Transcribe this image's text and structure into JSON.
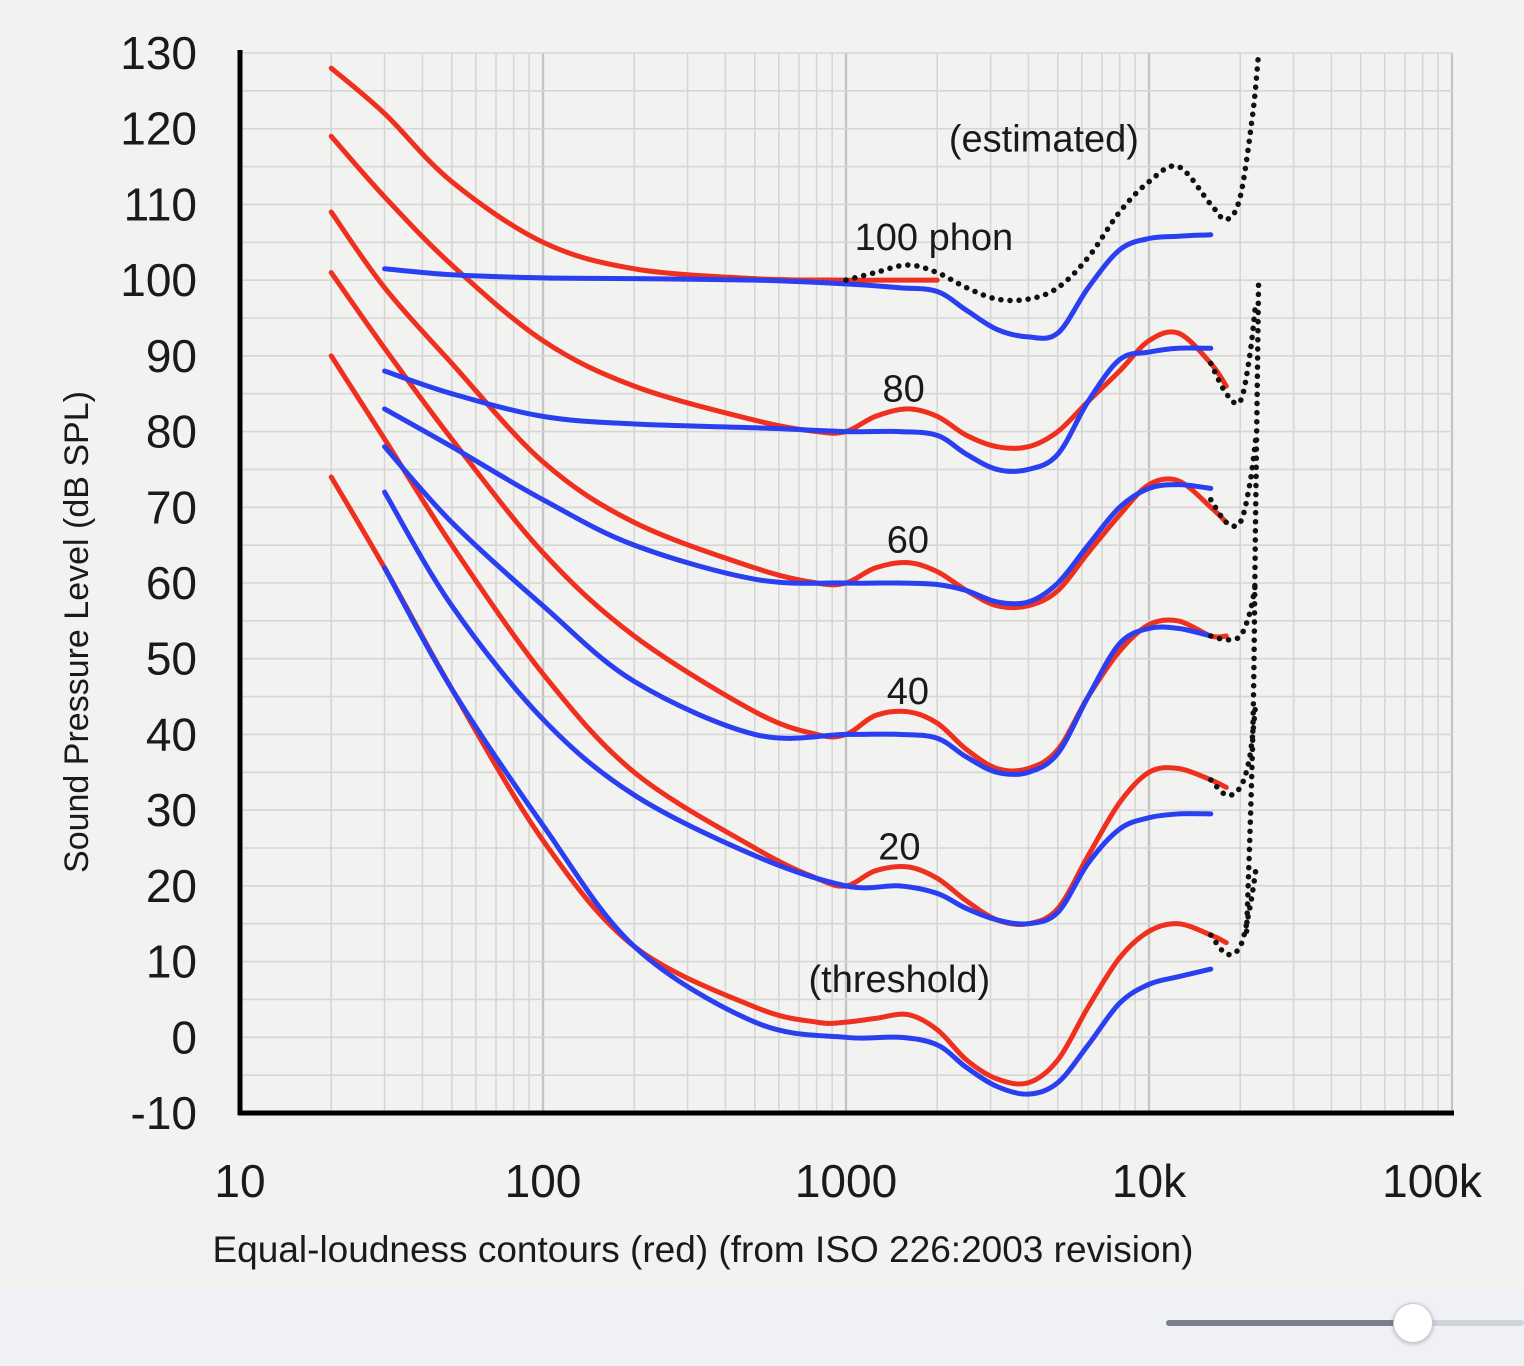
{
  "chart_data": {
    "type": "line",
    "ylabel": "Sound Pressure Level (dB SPL)",
    "xlabel": "Equal-loudness contours (red) (from ISO 226:2003 revision)",
    "x_scale": "log",
    "xlim": [
      10,
      100000
    ],
    "ylim": [
      -10,
      130
    ],
    "grid": true,
    "x_ticks": [
      {
        "value": 10,
        "label": "10"
      },
      {
        "value": 100,
        "label": "100"
      },
      {
        "value": 1000,
        "label": "1000"
      },
      {
        "value": 10000,
        "label": "10k"
      },
      {
        "value": 100000,
        "label": "100k"
      }
    ],
    "y_ticks": [
      {
        "value": 130,
        "label": "130"
      },
      {
        "value": 120,
        "label": "120"
      },
      {
        "value": 110,
        "label": "110"
      },
      {
        "value": 100,
        "label": "100"
      },
      {
        "value": 90,
        "label": "90"
      },
      {
        "value": 80,
        "label": "80"
      },
      {
        "value": 70,
        "label": "70"
      },
      {
        "value": 60,
        "label": "60"
      },
      {
        "value": 50,
        "label": "50"
      },
      {
        "value": 40,
        "label": "40"
      },
      {
        "value": 30,
        "label": "30"
      },
      {
        "value": 20,
        "label": "20"
      },
      {
        "value": 10,
        "label": "10"
      },
      {
        "value": 0,
        "label": "0"
      },
      {
        "value": -10,
        "label": "-10"
      }
    ],
    "colors": {
      "red": "#f0301e",
      "blue": "#2a3ff0",
      "dotted": "#111111",
      "axis": "#000000",
      "grid": "#d0d0d0"
    },
    "annotations": [
      {
        "text": "(estimated)",
        "x": 4500,
        "y": 117
      },
      {
        "text": "100 phon",
        "x": 1950,
        "y": 104
      },
      {
        "text": "80",
        "x": 1550,
        "y": 84
      },
      {
        "text": "60",
        "x": 1600,
        "y": 64
      },
      {
        "text": "40",
        "x": 1600,
        "y": 44
      },
      {
        "text": "20",
        "x": 1500,
        "y": 23.5
      },
      {
        "text": "(threshold)",
        "x": 1500,
        "y": 6
      }
    ],
    "series": [
      {
        "color": "red",
        "style": "solid",
        "points": [
          [
            20,
            128
          ],
          [
            30,
            122
          ],
          [
            50,
            113
          ],
          [
            100,
            105
          ],
          [
            200,
            101.5
          ],
          [
            500,
            100.2
          ],
          [
            1000,
            100
          ],
          [
            1500,
            100
          ],
          [
            2000,
            100
          ]
        ]
      },
      {
        "color": "red",
        "style": "solid",
        "points": [
          [
            20,
            119
          ],
          [
            30,
            111
          ],
          [
            50,
            102
          ],
          [
            100,
            92
          ],
          [
            200,
            86
          ],
          [
            500,
            81.5
          ],
          [
            800,
            80
          ],
          [
            1000,
            80
          ],
          [
            1250,
            82
          ],
          [
            1600,
            83
          ],
          [
            2000,
            82
          ],
          [
            2500,
            79.5
          ],
          [
            3150,
            78
          ],
          [
            4000,
            78
          ],
          [
            5000,
            80
          ],
          [
            6300,
            84
          ],
          [
            8000,
            88
          ],
          [
            10000,
            92
          ],
          [
            12500,
            93
          ],
          [
            16000,
            89
          ],
          [
            18000,
            86
          ]
        ]
      },
      {
        "color": "red",
        "style": "solid",
        "points": [
          [
            20,
            109
          ],
          [
            30,
            99
          ],
          [
            50,
            89
          ],
          [
            100,
            76
          ],
          [
            200,
            68
          ],
          [
            500,
            62
          ],
          [
            800,
            60
          ],
          [
            1000,
            60
          ],
          [
            1250,
            62
          ],
          [
            1600,
            62.7
          ],
          [
            2000,
            61.5
          ],
          [
            2500,
            59
          ],
          [
            3150,
            57
          ],
          [
            4000,
            57
          ],
          [
            5000,
            59
          ],
          [
            6300,
            64
          ],
          [
            8000,
            69
          ],
          [
            10000,
            73
          ],
          [
            12500,
            73.5
          ],
          [
            16000,
            70
          ],
          [
            18000,
            68
          ]
        ]
      },
      {
        "color": "red",
        "style": "solid",
        "points": [
          [
            20,
            101
          ],
          [
            30,
            91
          ],
          [
            50,
            79
          ],
          [
            100,
            64
          ],
          [
            200,
            53
          ],
          [
            500,
            43
          ],
          [
            800,
            40
          ],
          [
            1000,
            40
          ],
          [
            1250,
            42.5
          ],
          [
            1600,
            43
          ],
          [
            2000,
            41.5
          ],
          [
            2500,
            38
          ],
          [
            3150,
            35.5
          ],
          [
            4000,
            35.5
          ],
          [
            5000,
            38
          ],
          [
            6300,
            45
          ],
          [
            8000,
            51
          ],
          [
            10000,
            54.5
          ],
          [
            12500,
            55
          ],
          [
            16000,
            53
          ],
          [
            18000,
            53
          ]
        ]
      },
      {
        "color": "red",
        "style": "solid",
        "points": [
          [
            20,
            90
          ],
          [
            30,
            79
          ],
          [
            50,
            65
          ],
          [
            100,
            48
          ],
          [
            200,
            35
          ],
          [
            500,
            25
          ],
          [
            800,
            21
          ],
          [
            1000,
            20
          ],
          [
            1250,
            22
          ],
          [
            1600,
            22.5
          ],
          [
            2000,
            21
          ],
          [
            2500,
            18
          ],
          [
            3150,
            15.5
          ],
          [
            4000,
            15
          ],
          [
            5000,
            17
          ],
          [
            6300,
            24
          ],
          [
            8000,
            31
          ],
          [
            10000,
            35
          ],
          [
            12500,
            35.5
          ],
          [
            16000,
            34
          ],
          [
            18000,
            33
          ]
        ]
      },
      {
        "color": "red",
        "style": "solid",
        "points": [
          [
            20,
            74
          ],
          [
            30,
            62
          ],
          [
            50,
            46
          ],
          [
            100,
            26
          ],
          [
            200,
            12
          ],
          [
            500,
            4
          ],
          [
            800,
            2
          ],
          [
            1000,
            2
          ],
          [
            1250,
            2.5
          ],
          [
            1600,
            3
          ],
          [
            2000,
            1
          ],
          [
            2500,
            -3
          ],
          [
            3150,
            -5.5
          ],
          [
            4000,
            -6
          ],
          [
            5000,
            -3
          ],
          [
            6300,
            4
          ],
          [
            8000,
            10.5
          ],
          [
            10000,
            14
          ],
          [
            12500,
            15
          ],
          [
            16000,
            13.5
          ],
          [
            18000,
            12.5
          ]
        ]
      },
      {
        "color": "blue",
        "style": "solid",
        "points": [
          [
            30,
            101.5
          ],
          [
            50,
            100.7
          ],
          [
            100,
            100.3
          ],
          [
            200,
            100.2
          ],
          [
            500,
            100
          ],
          [
            1000,
            99.5
          ],
          [
            1500,
            99
          ],
          [
            2000,
            98.5
          ],
          [
            2500,
            96
          ],
          [
            3150,
            93.5
          ],
          [
            4000,
            92.5
          ],
          [
            5000,
            93
          ],
          [
            6300,
            99
          ],
          [
            8000,
            104
          ],
          [
            10000,
            105.5
          ],
          [
            12500,
            105.8
          ],
          [
            16000,
            106
          ]
        ]
      },
      {
        "color": "blue",
        "style": "solid",
        "points": [
          [
            30,
            88
          ],
          [
            50,
            85
          ],
          [
            100,
            82
          ],
          [
            200,
            81
          ],
          [
            500,
            80.5
          ],
          [
            1000,
            80
          ],
          [
            1500,
            80
          ],
          [
            2000,
            79.5
          ],
          [
            2500,
            77
          ],
          [
            3150,
            75
          ],
          [
            4000,
            75
          ],
          [
            5000,
            77
          ],
          [
            6300,
            84
          ],
          [
            8000,
            89.5
          ],
          [
            10000,
            90.5
          ],
          [
            12500,
            91
          ],
          [
            16000,
            91
          ]
        ]
      },
      {
        "color": "blue",
        "style": "solid",
        "points": [
          [
            30,
            83
          ],
          [
            50,
            78
          ],
          [
            100,
            71
          ],
          [
            200,
            65
          ],
          [
            500,
            60.5
          ],
          [
            1000,
            60
          ],
          [
            1500,
            60
          ],
          [
            2000,
            59.8
          ],
          [
            2500,
            59
          ],
          [
            3150,
            57.5
          ],
          [
            4000,
            57.5
          ],
          [
            5000,
            60
          ],
          [
            6300,
            65
          ],
          [
            8000,
            70
          ],
          [
            10000,
            72.5
          ],
          [
            12500,
            73
          ],
          [
            16000,
            72.5
          ]
        ]
      },
      {
        "color": "blue",
        "style": "solid",
        "points": [
          [
            30,
            78
          ],
          [
            50,
            68
          ],
          [
            100,
            57
          ],
          [
            200,
            47
          ],
          [
            500,
            40
          ],
          [
            1000,
            40
          ],
          [
            1500,
            40
          ],
          [
            2000,
            39.5
          ],
          [
            2500,
            37
          ],
          [
            3150,
            35
          ],
          [
            4000,
            35
          ],
          [
            5000,
            37.5
          ],
          [
            6300,
            45
          ],
          [
            8000,
            52
          ],
          [
            10000,
            54
          ],
          [
            12500,
            54
          ],
          [
            16000,
            53
          ]
        ]
      },
      {
        "color": "blue",
        "style": "solid",
        "points": [
          [
            30,
            72
          ],
          [
            50,
            57
          ],
          [
            100,
            42
          ],
          [
            200,
            32
          ],
          [
            500,
            24
          ],
          [
            1000,
            20
          ],
          [
            1500,
            20
          ],
          [
            2000,
            19
          ],
          [
            2500,
            17
          ],
          [
            3150,
            15.5
          ],
          [
            4000,
            15
          ],
          [
            5000,
            16.5
          ],
          [
            6300,
            23
          ],
          [
            8000,
            27.5
          ],
          [
            10000,
            29
          ],
          [
            12500,
            29.5
          ],
          [
            16000,
            29.5
          ]
        ]
      },
      {
        "color": "blue",
        "style": "solid",
        "points": [
          [
            30,
            62
          ],
          [
            50,
            46
          ],
          [
            100,
            28
          ],
          [
            200,
            12
          ],
          [
            500,
            2
          ],
          [
            1000,
            0
          ],
          [
            1500,
            0
          ],
          [
            2000,
            -1
          ],
          [
            2500,
            -4
          ],
          [
            3150,
            -6.5
          ],
          [
            4000,
            -7.5
          ],
          [
            5000,
            -6
          ],
          [
            6300,
            -1
          ],
          [
            8000,
            4.5
          ],
          [
            10000,
            7
          ],
          [
            12500,
            8
          ],
          [
            16000,
            9
          ]
        ]
      },
      {
        "color": "dotted",
        "style": "dotted",
        "points": [
          [
            1000,
            100
          ],
          [
            1250,
            101
          ],
          [
            1600,
            102
          ],
          [
            2000,
            101
          ],
          [
            2500,
            99
          ],
          [
            3150,
            97.5
          ],
          [
            4000,
            97.5
          ],
          [
            5000,
            99
          ],
          [
            6300,
            103
          ],
          [
            8000,
            109
          ],
          [
            10000,
            113
          ],
          [
            12500,
            115
          ],
          [
            16000,
            110
          ],
          [
            18000,
            108
          ],
          [
            20000,
            111
          ],
          [
            22000,
            122
          ],
          [
            23000,
            130
          ]
        ]
      },
      {
        "color": "dotted",
        "style": "dotted",
        "points": [
          [
            16000,
            89
          ],
          [
            18000,
            85
          ],
          [
            20000,
            84
          ],
          [
            21500,
            90
          ],
          [
            22500,
            97
          ]
        ]
      },
      {
        "color": "dotted",
        "style": "dotted",
        "points": [
          [
            16000,
            71
          ],
          [
            18000,
            68
          ],
          [
            20000,
            68
          ],
          [
            21500,
            73
          ],
          [
            22500,
            79
          ]
        ]
      },
      {
        "color": "dotted",
        "style": "dotted",
        "points": [
          [
            16000,
            53
          ],
          [
            18000,
            52.5
          ],
          [
            20000,
            53
          ],
          [
            21500,
            56
          ],
          [
            22500,
            60
          ]
        ]
      },
      {
        "color": "dotted",
        "style": "dotted",
        "points": [
          [
            16000,
            34
          ],
          [
            18000,
            32
          ],
          [
            20000,
            33
          ],
          [
            21500,
            37
          ],
          [
            22500,
            44
          ]
        ]
      },
      {
        "color": "dotted",
        "style": "dotted",
        "points": [
          [
            16000,
            13.5
          ],
          [
            18000,
            11
          ],
          [
            20000,
            12
          ],
          [
            21500,
            17
          ],
          [
            22500,
            22
          ]
        ]
      },
      {
        "color": "dotted",
        "style": "dotted",
        "points": [
          [
            21000,
            14
          ],
          [
            22000,
            40
          ],
          [
            22500,
            70
          ],
          [
            23000,
            100
          ]
        ]
      }
    ]
  },
  "viewer": {
    "zoom_slider_value": 0.69
  }
}
